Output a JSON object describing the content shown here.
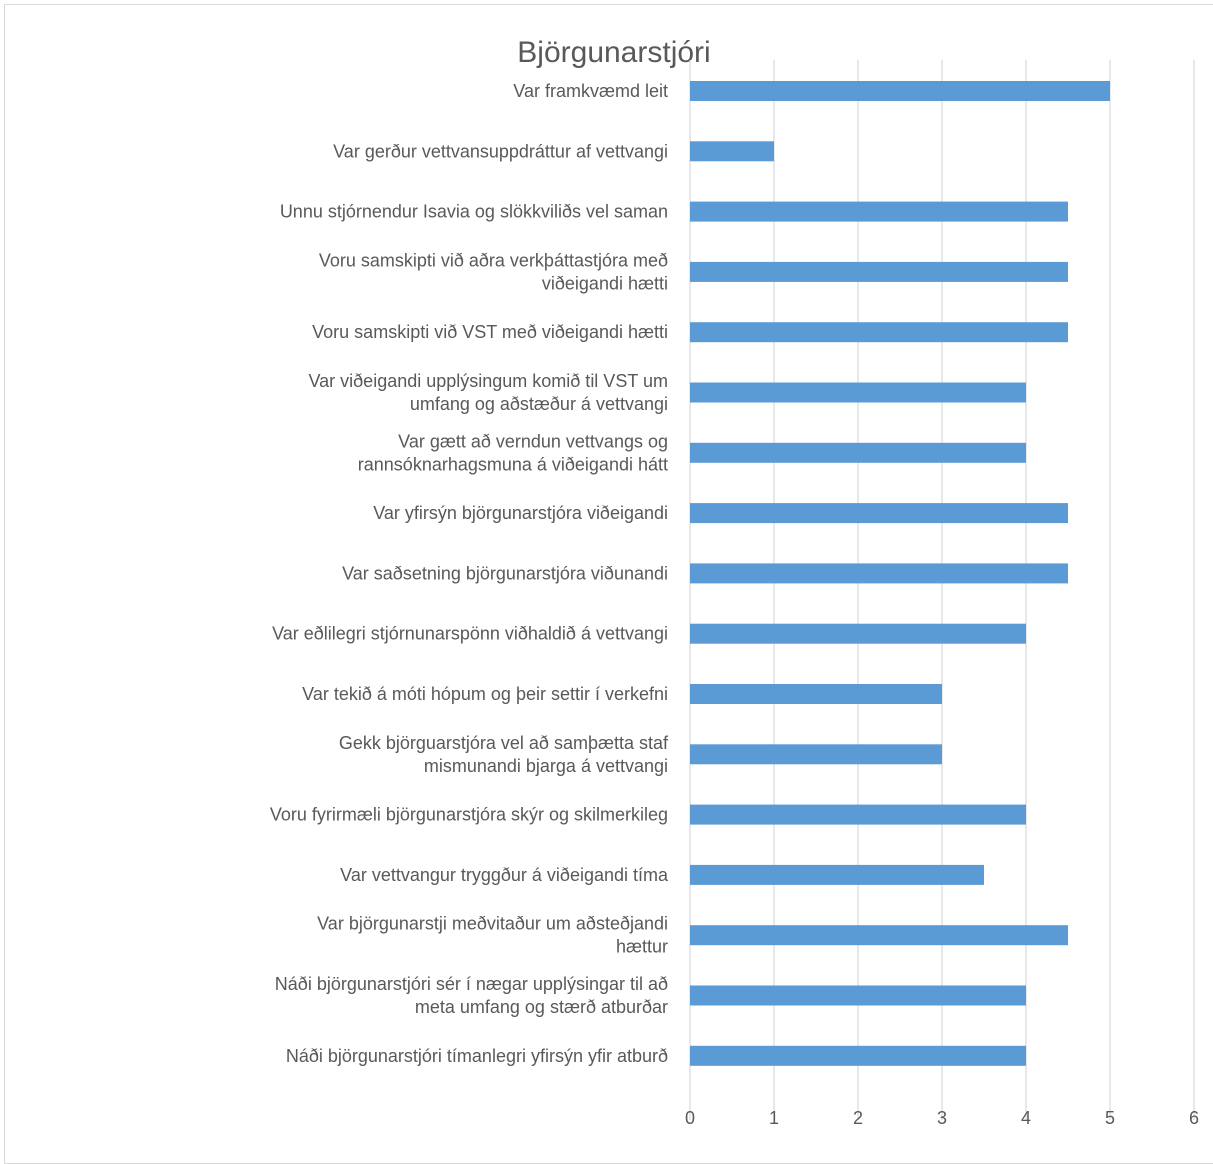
{
  "chart_data": {
    "type": "bar",
    "orientation": "horizontal",
    "title": "Björgunarstjóri",
    "xlabel": "",
    "ylabel": "",
    "xlim": [
      0,
      6
    ],
    "x_ticks": [
      "0",
      "1",
      "2",
      "3",
      "4",
      "5",
      "6"
    ],
    "grid": true,
    "legend": "none",
    "bar_color": "#5b9bd5",
    "categories": [
      "Var framkvæmd leit",
      "Var gerður vettvansuppdráttur af vettvangi",
      "Unnu stjórnendur Isavia og slökkviliðs vel saman",
      "Voru samskipti við aðra verkþáttastjóra með viðeigandi hætti",
      "Voru samskipti við VST með viðeigandi hætti",
      "Var viðeigandi upplýsingum komið til VST um umfang og aðstæður á vettvangi",
      "Var gætt að verndun vettvangs og rannsóknarhagsmuna á viðeigandi hátt",
      "Var yfirsýn björgunarstjóra viðeigandi",
      "Var saðsetning björgunarstjóra viðunandi",
      "Var eðlilegri stjórnunarspönn viðhaldið á vettvangi",
      "Var tekið á móti hópum og þeir settir í verkefni",
      "Gekk björguarstjóra vel að samþætta staf mismunandi bjarga á vettvangi",
      "Voru fyrirmæli björgunarstjóra skýr og skilmerkileg",
      "Var vettvangur tryggður á viðeigandi tíma",
      "Var björgunarstji meðvitaður um aðsteðjandi hættur",
      "Náði björgunarstjóri sér í nægar upplýsingar til að meta umfang og stærð atburðar",
      "Náði björgunarstjóri tímanlegri yfirsýn yfir atburð"
    ],
    "category_lines": [
      [
        "Var framkvæmd leit"
      ],
      [
        "Var gerður vettvansuppdráttur af vettvangi"
      ],
      [
        "Unnu stjórnendur Isavia og slökkviliðs vel saman"
      ],
      [
        "Voru samskipti við aðra verkþáttastjóra með",
        "viðeigandi hætti"
      ],
      [
        "Voru samskipti við VST með viðeigandi hætti"
      ],
      [
        "Var viðeigandi upplýsingum komið til VST um",
        "umfang og aðstæður á vettvangi"
      ],
      [
        "Var gætt að verndun vettvangs og",
        "rannsóknarhagsmuna á viðeigandi hátt"
      ],
      [
        "Var yfirsýn björgunarstjóra viðeigandi"
      ],
      [
        "Var saðsetning björgunarstjóra viðunandi"
      ],
      [
        "Var eðlilegri stjórnunarspönn viðhaldið á vettvangi"
      ],
      [
        "Var tekið á móti hópum og þeir settir í verkefni"
      ],
      [
        "Gekk björguarstjóra vel að samþætta staf",
        "mismunandi bjarga á vettvangi"
      ],
      [
        "Voru fyrirmæli björgunarstjóra skýr og skilmerkileg"
      ],
      [
        "Var vettvangur tryggður á viðeigandi tíma"
      ],
      [
        "Var björgunarstji meðvitaður um aðsteðjandi",
        "hættur"
      ],
      [
        "Náði björgunarstjóri sér í nægar upplýsingar til að",
        "meta umfang og stærð atburðar"
      ],
      [
        "Náði björgunarstjóri tímanlegri yfirsýn yfir atburð"
      ]
    ],
    "values": [
      5,
      1,
      4.5,
      4.5,
      4.5,
      4,
      4,
      4.5,
      4.5,
      4,
      3,
      3,
      4,
      3.5,
      4.5,
      4,
      4
    ]
  }
}
